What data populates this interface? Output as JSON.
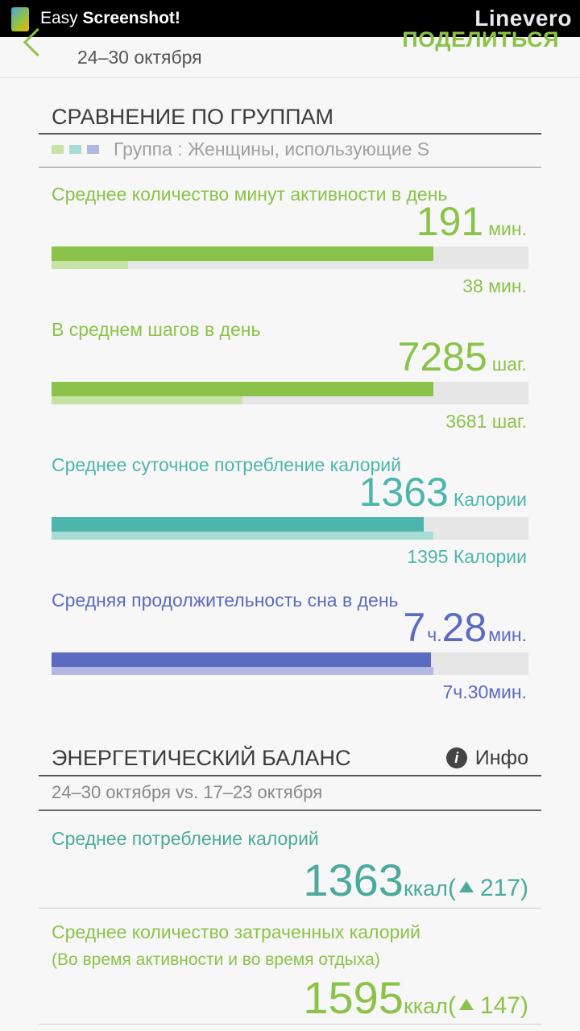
{
  "status_bar": {
    "app_name_prefix": "Easy ",
    "app_name_bold": "Screenshot!",
    "brand": "Linevero"
  },
  "header": {
    "date_range": "24–30 октября",
    "share_label": "ПОДЕЛИТЬСЯ"
  },
  "group_comparison": {
    "title": "СРАВНЕНИЕ ПО ГРУППАМ",
    "legend_text": "Группа : Женщины, использующие S",
    "legend_colors": [
      "#c5e3a2",
      "#a8ddd5",
      "#b3b7e3"
    ],
    "metrics": [
      {
        "label": "Среднее количество минут активности в день",
        "value": "191",
        "unit": "мин.",
        "group_value": "38 мин.",
        "user_fraction": 0.8,
        "group_fraction": 0.16,
        "color": "#8bc34a",
        "light_color": "#c5e3a2"
      },
      {
        "label": "В среднем шагов в день",
        "value": "7285",
        "unit": "шаг.",
        "group_value": "3681 шаг.",
        "user_fraction": 0.8,
        "group_fraction": 0.4,
        "color": "#8bc34a",
        "light_color": "#c5e3a2"
      },
      {
        "label": "Среднее суточное потребление калорий",
        "value": "1363",
        "unit": "Калории",
        "group_value": "1395 Калории",
        "user_fraction": 0.78,
        "group_fraction": 0.8,
        "color": "#4db6ac",
        "light_color": "#a8ddd5"
      },
      {
        "label": "Средняя продолжительность сна в день",
        "value_hours": "7",
        "unit_hours": "ч.",
        "value_minutes": "28",
        "unit_minutes": "мин.",
        "group_value": "7ч.30мин.",
        "user_fraction": 0.795,
        "group_fraction": 0.8,
        "color": "#5c6bc0",
        "light_color": "#b3b7e3"
      }
    ]
  },
  "energy_balance": {
    "title": "ЭНЕРГЕТИЧЕСКИЙ БАЛАНС",
    "info_icon": "info-icon",
    "info_label": "Инфо",
    "comparison_dates": "24–30 октября vs. 17–23 октября",
    "items": [
      {
        "label": "Среднее потребление калорий",
        "value": "1363",
        "unit": "ккал",
        "change": "217",
        "color": "#4aab9b"
      },
      {
        "label": "Среднее количество затраченных калорий",
        "sublabel": "(Во время активности и во время отдыха)",
        "value": "1595",
        "unit": "ккал",
        "change": "147",
        "color": "#8bc34a"
      }
    ]
  }
}
